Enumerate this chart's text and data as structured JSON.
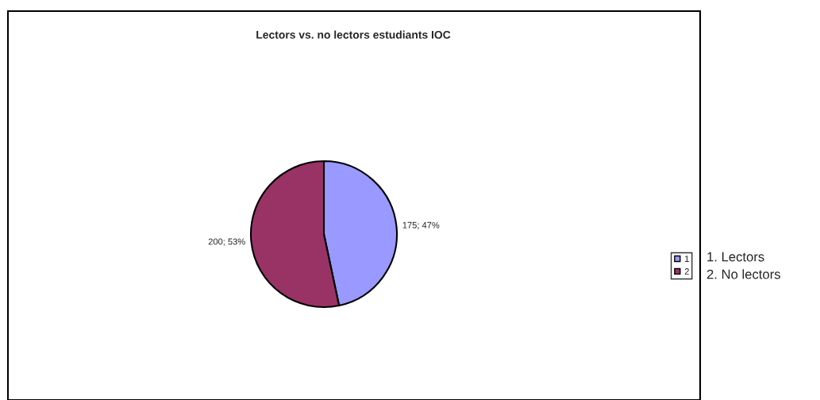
{
  "chart_data": {
    "type": "pie",
    "title": "Lectors vs. no lectors estudiants IOC",
    "categories": [
      "1",
      "2"
    ],
    "values": [
      175,
      200
    ],
    "colors": [
      "#9999ff",
      "#993366"
    ],
    "value_labels": [
      "175; 47%",
      "200; 53%"
    ],
    "legend": "right",
    "annotations": [
      "1. Lectors",
      "2. No lectors"
    ]
  }
}
